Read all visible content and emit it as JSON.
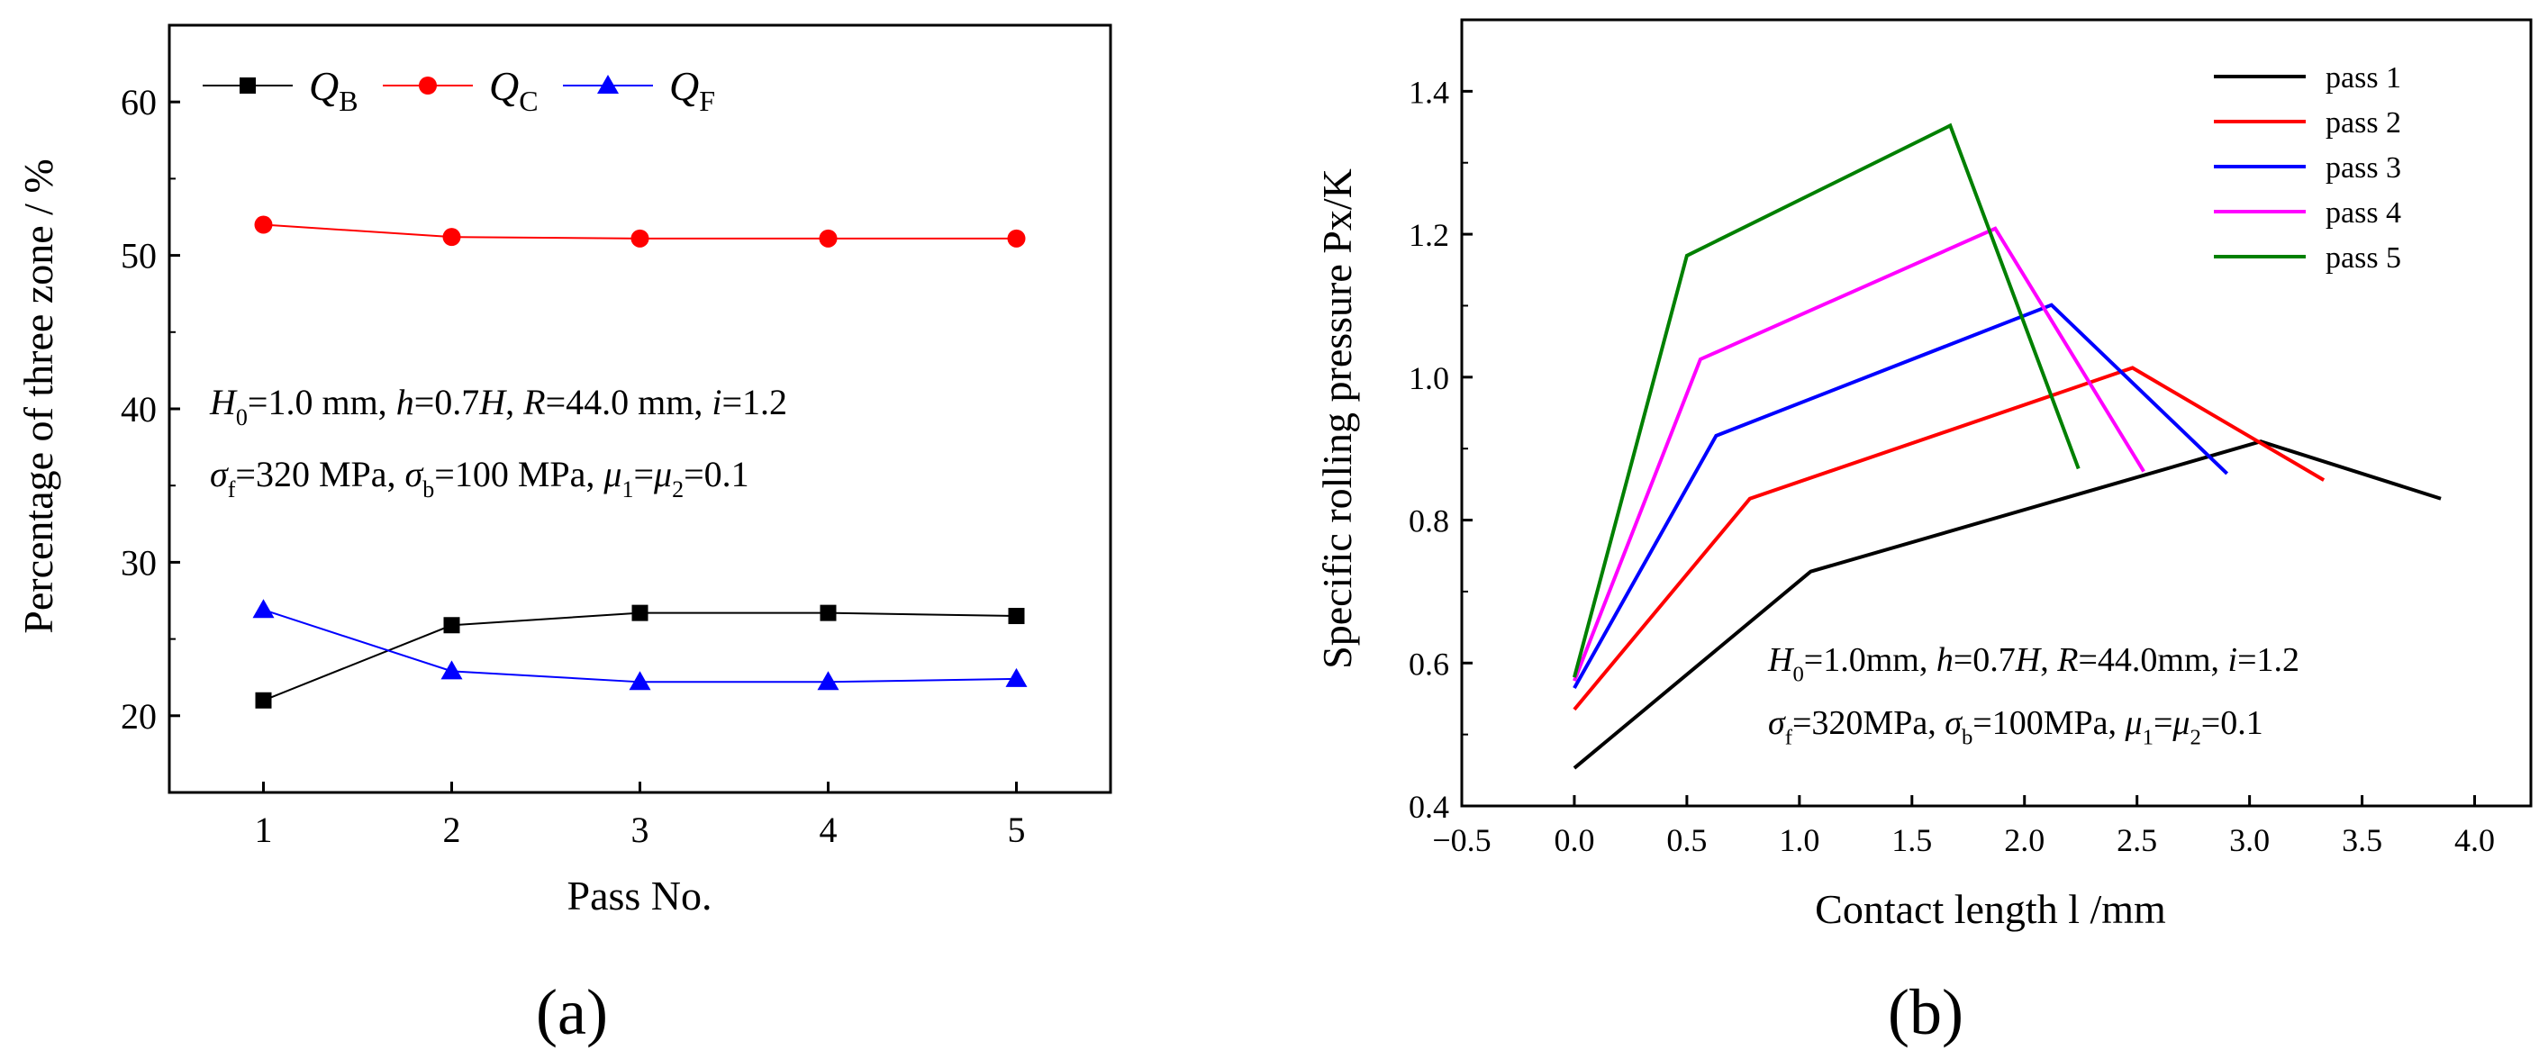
{
  "colors": {
    "axis": "#000000",
    "black": "#000000",
    "red": "#ff0000",
    "blue": "#0000ff",
    "magenta": "#ff00ff",
    "green": "#008000"
  },
  "chart_data": [
    {
      "panel": "(a)",
      "type": "line",
      "xlabel": "Pass No.",
      "ylabel": "Percentage of three zone / %",
      "xlim": [
        0.5,
        5.5
      ],
      "ylim": [
        15,
        65
      ],
      "xticks": [
        1,
        2,
        3,
        4,
        5
      ],
      "yticks": [
        20,
        30,
        40,
        50,
        60
      ],
      "legend_position": "top-left",
      "annotation_lines": [
        [
          "H",
          "0",
          "=1.0 mm, ",
          "h",
          "=0.7",
          "H",
          ", ",
          "R",
          "=44.0 mm, ",
          "i",
          "=1.2"
        ],
        [
          "σ",
          "f",
          "=320 MPa, ",
          "σ",
          "b",
          "=100 MPa, ",
          "μ",
          "1",
          "=",
          "μ",
          "2",
          "=0.1"
        ]
      ],
      "series": [
        {
          "name": "Q",
          "sub": "B",
          "color": "#000000",
          "marker": "square",
          "x": [
            1,
            2,
            3,
            4,
            5
          ],
          "y": [
            21.0,
            25.9,
            26.7,
            26.7,
            26.5
          ]
        },
        {
          "name": "Q",
          "sub": "C",
          "color": "#ff0000",
          "marker": "circle",
          "x": [
            1,
            2,
            3,
            4,
            5
          ],
          "y": [
            52.0,
            51.2,
            51.1,
            51.1,
            51.1
          ]
        },
        {
          "name": "Q",
          "sub": "F",
          "color": "#0000ff",
          "marker": "triangle",
          "x": [
            1,
            2,
            3,
            4,
            5
          ],
          "y": [
            26.9,
            22.9,
            22.2,
            22.2,
            22.4
          ]
        }
      ]
    },
    {
      "panel": "(b)",
      "type": "line",
      "xlabel": "Contact length l /mm",
      "ylabel": "Specific rolling pressure Px/K",
      "xlim": [
        -0.5,
        4.25
      ],
      "ylim": [
        0.4,
        1.5
      ],
      "xticks": [
        "−0.5",
        "0.0",
        "0.5",
        "1.0",
        "1.5",
        "2.0",
        "2.5",
        "3.0",
        "3.5",
        "4.0"
      ],
      "yticks": [
        "0.4",
        "0.6",
        "0.8",
        "1.0",
        "1.2",
        "1.4"
      ],
      "legend_position": "top-right",
      "annotation_lines": [
        [
          "H",
          "0",
          "=1.0mm, ",
          "h",
          "=0.7",
          "H",
          ", ",
          "R",
          "=44.0mm, ",
          "i",
          "=1.2"
        ],
        [
          "σ",
          "f",
          "=320MPa, ",
          "σ",
          "b",
          "=100MPa, ",
          "μ",
          "1",
          "=",
          "μ",
          "2",
          "=0.1"
        ]
      ],
      "series": [
        {
          "name": "pass 1",
          "color": "#000000",
          "x": [
            0.0,
            1.05,
            3.05,
            3.85
          ],
          "y": [
            0.453,
            0.728,
            0.91,
            0.83
          ]
        },
        {
          "name": "pass 2",
          "color": "#ff0000",
          "x": [
            0.0,
            0.78,
            2.48,
            3.33
          ],
          "y": [
            0.535,
            0.83,
            1.013,
            0.856
          ]
        },
        {
          "name": "pass 3",
          "color": "#0000ff",
          "x": [
            0.0,
            0.63,
            2.12,
            2.9
          ],
          "y": [
            0.565,
            0.918,
            1.101,
            0.865
          ]
        },
        {
          "name": "pass 4",
          "color": "#ff00ff",
          "x": [
            0.0,
            0.56,
            1.87,
            2.53
          ],
          "y": [
            0.575,
            1.025,
            1.208,
            0.868
          ]
        },
        {
          "name": "pass 5",
          "color": "#008000",
          "x": [
            0.0,
            0.5,
            1.67,
            2.24
          ],
          "y": [
            0.58,
            1.17,
            1.352,
            0.872
          ]
        }
      ]
    }
  ],
  "panel_labels": {
    "a": "(a)",
    "b": "(b)"
  }
}
